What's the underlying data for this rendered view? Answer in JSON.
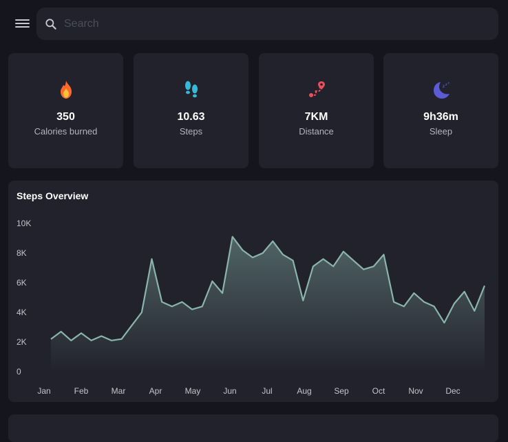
{
  "search": {
    "placeholder": "Search"
  },
  "stats": [
    {
      "value": "350",
      "label": "Calories burned",
      "icon": "fire-icon"
    },
    {
      "value": "10.63",
      "label": "Steps",
      "icon": "footprints-icon"
    },
    {
      "value": "7KM",
      "label": "Distance",
      "icon": "route-icon"
    },
    {
      "value": "9h36m",
      "label": "Sleep",
      "icon": "moon-sleep-icon"
    }
  ],
  "colors": {
    "background": "#15151e",
    "card": "#22222d",
    "line": "#8ab5ad",
    "fire": "#ff6a2b",
    "steps": "#36b9d8",
    "distance": "#e8505b",
    "sleep": "#5b5bd6"
  },
  "chart_data": {
    "type": "area",
    "title": "Steps Overview",
    "xlabel": "",
    "ylabel": "",
    "x_ticks": [
      "Jan",
      "Feb",
      "Mar",
      "Apr",
      "May",
      "Jun",
      "Jul",
      "Aug",
      "Sep",
      "Oct",
      "Nov",
      "Dec"
    ],
    "y_ticks": [
      "0",
      "2K",
      "4K",
      "6K",
      "8K",
      "10K"
    ],
    "ylim": [
      0,
      10000
    ],
    "grid": false,
    "series": [
      {
        "values": [
          2200,
          2700,
          2100,
          2600,
          2100,
          2400,
          2100,
          2200,
          3100,
          4000,
          7600,
          4700,
          4400,
          4700,
          4200,
          4400,
          6100,
          5300,
          9100,
          8200,
          7700,
          8000,
          8800,
          7900,
          7500,
          4800,
          7100,
          7600,
          7100,
          8100,
          7500,
          6900,
          7100,
          7900,
          4700,
          4400,
          5300,
          4700,
          4400,
          3300,
          4600,
          5400,
          4100,
          5800
        ]
      }
    ]
  },
  "chart": {
    "title": "Steps Overview"
  }
}
